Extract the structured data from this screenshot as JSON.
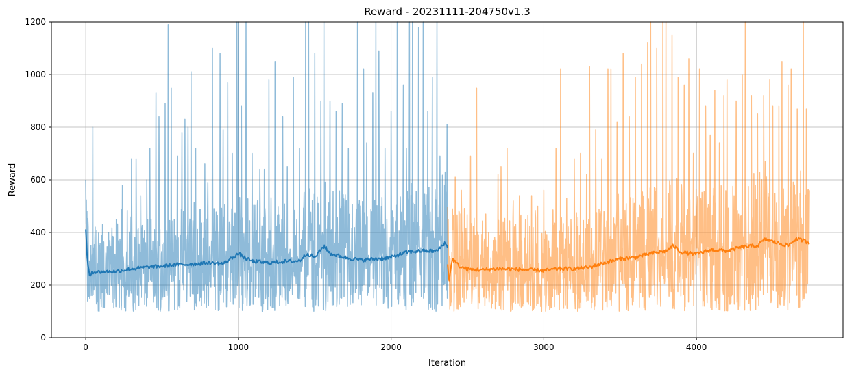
{
  "chart_data": {
    "type": "line",
    "title": "Reward - 20231111-204750v1.3",
    "xlabel": "Iteration",
    "ylabel": "Reward",
    "xlim": [
      -225,
      4960
    ],
    "ylim": [
      0,
      1200
    ],
    "xticks": [
      0,
      1000,
      2000,
      3000,
      4000
    ],
    "yticks": [
      0,
      200,
      400,
      600,
      800,
      1000,
      1200
    ],
    "grid": true,
    "legend": "none",
    "series": [
      {
        "color": "#1f77b4",
        "style": "raw",
        "alpha": 0.5,
        "x_range": [
          0,
          2370
        ],
        "raw_min": 80,
        "raw_max": 1200,
        "spikes": [
          [
            0,
            600
          ],
          [
            15,
            420
          ],
          [
            45,
            800
          ],
          [
            60,
            380
          ],
          [
            110,
            430
          ],
          [
            150,
            400
          ],
          [
            200,
            450
          ],
          [
            240,
            580
          ],
          [
            300,
            680
          ],
          [
            330,
            680
          ],
          [
            360,
            540
          ],
          [
            400,
            600
          ],
          [
            420,
            720
          ],
          [
            460,
            930
          ],
          [
            480,
            840
          ],
          [
            520,
            890
          ],
          [
            540,
            1190
          ],
          [
            560,
            950
          ],
          [
            600,
            690
          ],
          [
            630,
            780
          ],
          [
            650,
            830
          ],
          [
            670,
            800
          ],
          [
            690,
            1010
          ],
          [
            720,
            720
          ],
          [
            780,
            660
          ],
          [
            800,
            590
          ],
          [
            830,
            1100
          ],
          [
            880,
            1080
          ],
          [
            900,
            790
          ],
          [
            930,
            970
          ],
          [
            960,
            700
          ],
          [
            990,
            1200
          ],
          [
            1000,
            1200
          ],
          [
            1020,
            880
          ],
          [
            1050,
            1200
          ],
          [
            1090,
            700
          ],
          [
            1140,
            640
          ],
          [
            1170,
            640
          ],
          [
            1200,
            980
          ],
          [
            1240,
            1050
          ],
          [
            1290,
            840
          ],
          [
            1320,
            650
          ],
          [
            1360,
            990
          ],
          [
            1400,
            720
          ],
          [
            1440,
            1200
          ],
          [
            1460,
            1200
          ],
          [
            1500,
            1080
          ],
          [
            1540,
            900
          ],
          [
            1560,
            1200
          ],
          [
            1600,
            900
          ],
          [
            1640,
            860
          ],
          [
            1680,
            890
          ],
          [
            1720,
            720
          ],
          [
            1780,
            1200
          ],
          [
            1820,
            1020
          ],
          [
            1840,
            740
          ],
          [
            1880,
            930
          ],
          [
            1900,
            1200
          ],
          [
            1920,
            1090
          ],
          [
            1960,
            720
          ],
          [
            2000,
            860
          ],
          [
            2040,
            1200
          ],
          [
            2080,
            960
          ],
          [
            2100,
            720
          ],
          [
            2120,
            1200
          ],
          [
            2140,
            1200
          ],
          [
            2180,
            1180
          ],
          [
            2210,
            1200
          ],
          [
            2240,
            860
          ],
          [
            2270,
            990
          ],
          [
            2300,
            1200
          ],
          [
            2320,
            690
          ],
          [
            2350,
            580
          ],
          [
            2365,
            810
          ]
        ],
        "avg_points": [
          [
            0,
            410
          ],
          [
            10,
            300
          ],
          [
            25,
            230
          ],
          [
            40,
            250
          ],
          [
            100,
            250
          ],
          [
            200,
            252
          ],
          [
            300,
            262
          ],
          [
            400,
            268
          ],
          [
            500,
            272
          ],
          [
            600,
            278
          ],
          [
            700,
            280
          ],
          [
            800,
            285
          ],
          [
            900,
            282
          ],
          [
            950,
            300
          ],
          [
            1000,
            320
          ],
          [
            1050,
            300
          ],
          [
            1100,
            290
          ],
          [
            1200,
            285
          ],
          [
            1300,
            290
          ],
          [
            1400,
            292
          ],
          [
            1450,
            320
          ],
          [
            1500,
            305
          ],
          [
            1560,
            350
          ],
          [
            1600,
            320
          ],
          [
            1700,
            305
          ],
          [
            1800,
            295
          ],
          [
            1900,
            300
          ],
          [
            2000,
            305
          ],
          [
            2100,
            325
          ],
          [
            2200,
            330
          ],
          [
            2300,
            330
          ],
          [
            2350,
            360
          ],
          [
            2370,
            345
          ]
        ]
      },
      {
        "color": "#ff7f0e",
        "style": "raw",
        "alpha": 0.5,
        "x_range": [
          2370,
          4740
        ],
        "raw_min": 80,
        "raw_max": 1200,
        "spikes": [
          [
            2380,
            310
          ],
          [
            2420,
            610
          ],
          [
            2460,
            560
          ],
          [
            2520,
            690
          ],
          [
            2560,
            950
          ],
          [
            2620,
            470
          ],
          [
            2700,
            620
          ],
          [
            2720,
            650
          ],
          [
            2760,
            720
          ],
          [
            2800,
            520
          ],
          [
            2840,
            540
          ],
          [
            2880,
            450
          ],
          [
            2920,
            540
          ],
          [
            2960,
            500
          ],
          [
            3000,
            560
          ],
          [
            3080,
            720
          ],
          [
            3110,
            1020
          ],
          [
            3150,
            530
          ],
          [
            3200,
            680
          ],
          [
            3240,
            700
          ],
          [
            3280,
            620
          ],
          [
            3300,
            1030
          ],
          [
            3340,
            790
          ],
          [
            3380,
            680
          ],
          [
            3420,
            1020
          ],
          [
            3440,
            1020
          ],
          [
            3480,
            820
          ],
          [
            3520,
            1080
          ],
          [
            3560,
            840
          ],
          [
            3600,
            990
          ],
          [
            3640,
            1040
          ],
          [
            3680,
            1120
          ],
          [
            3700,
            1200
          ],
          [
            3740,
            1100
          ],
          [
            3780,
            1200
          ],
          [
            3800,
            1200
          ],
          [
            3840,
            1150
          ],
          [
            3880,
            990
          ],
          [
            3920,
            960
          ],
          [
            3950,
            1060
          ],
          [
            3980,
            700
          ],
          [
            4020,
            1020
          ],
          [
            4060,
            880
          ],
          [
            4090,
            770
          ],
          [
            4120,
            940
          ],
          [
            4150,
            740
          ],
          [
            4180,
            920
          ],
          [
            4200,
            980
          ],
          [
            4260,
            900
          ],
          [
            4300,
            1000
          ],
          [
            4320,
            1200
          ],
          [
            4360,
            920
          ],
          [
            4400,
            850
          ],
          [
            4440,
            920
          ],
          [
            4480,
            980
          ],
          [
            4500,
            880
          ],
          [
            4540,
            880
          ],
          [
            4560,
            1050
          ],
          [
            4600,
            960
          ],
          [
            4620,
            1020
          ],
          [
            4660,
            870
          ],
          [
            4700,
            1200
          ],
          [
            4720,
            870
          ],
          [
            4740,
            560
          ]
        ],
        "avg_points": [
          [
            2370,
            280
          ],
          [
            2380,
            215
          ],
          [
            2400,
            300
          ],
          [
            2450,
            270
          ],
          [
            2500,
            260
          ],
          [
            2600,
            258
          ],
          [
            2700,
            262
          ],
          [
            2800,
            260
          ],
          [
            2900,
            258
          ],
          [
            3000,
            255
          ],
          [
            3100,
            262
          ],
          [
            3200,
            262
          ],
          [
            3300,
            268
          ],
          [
            3400,
            285
          ],
          [
            3500,
            300
          ],
          [
            3600,
            305
          ],
          [
            3700,
            320
          ],
          [
            3800,
            330
          ],
          [
            3850,
            350
          ],
          [
            3900,
            325
          ],
          [
            4000,
            318
          ],
          [
            4100,
            335
          ],
          [
            4200,
            330
          ],
          [
            4300,
            345
          ],
          [
            4400,
            350
          ],
          [
            4450,
            375
          ],
          [
            4500,
            365
          ],
          [
            4600,
            350
          ],
          [
            4650,
            375
          ],
          [
            4700,
            370
          ],
          [
            4740,
            360
          ]
        ]
      }
    ]
  }
}
